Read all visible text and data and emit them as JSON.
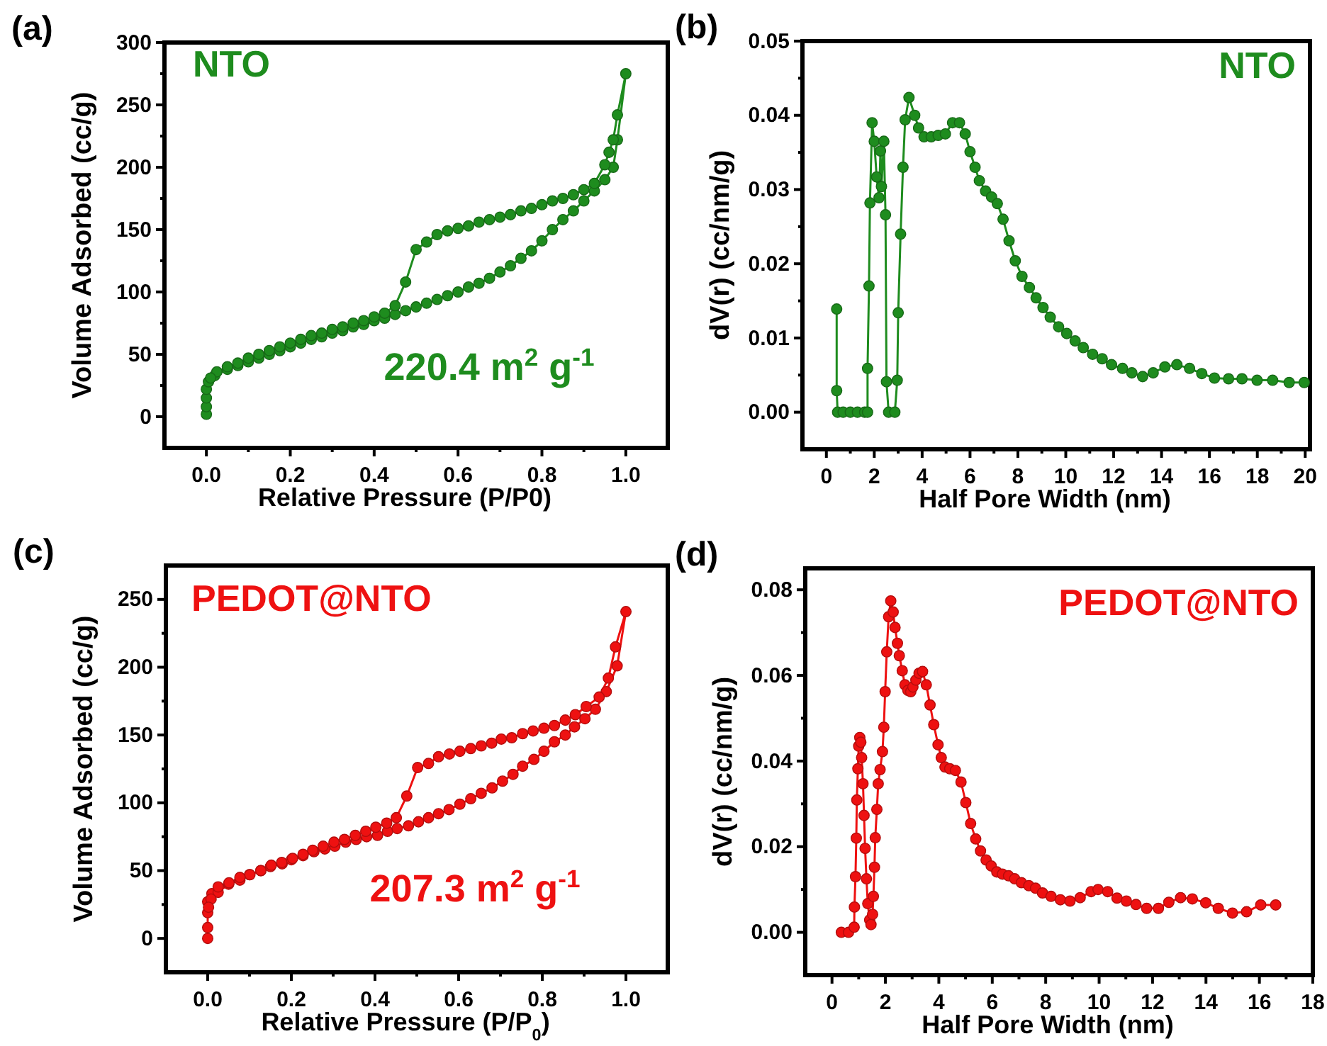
{
  "chart_data": [
    {
      "type": "line",
      "xlabel": "Relative Pressure (P/P0)",
      "ylabel": "Volume Adsorbed (cc/g)",
      "annotations": [
        "(a)",
        "NTO",
        "220.4 m$^{2}$ g$^{-1}$"
      ],
      "marker": "circle",
      "line_style": "solid",
      "xlim": [
        -0.1,
        1.1
      ],
      "ylim": [
        -25,
        300
      ],
      "xticks": [
        {
          "value": 0,
          "label": "0.0"
        },
        {
          "value": 0.1,
          "label": null
        },
        {
          "value": 0.2,
          "label": "0.2"
        },
        {
          "value": 0.3,
          "label": null
        },
        {
          "value": 0.4,
          "label": "0.4"
        },
        {
          "value": 0.5,
          "label": null
        },
        {
          "value": 0.6,
          "label": "0.6"
        },
        {
          "value": 0.7,
          "label": null
        },
        {
          "value": 0.8,
          "label": "0.8"
        },
        {
          "value": 0.9,
          "label": null
        },
        {
          "value": 1,
          "label": "1.0"
        }
      ],
      "yticks": [
        0,
        {
          "value": 25,
          "label": null
        },
        50,
        {
          "value": 75,
          "label": null
        },
        100,
        {
          "value": 125,
          "label": null
        },
        150,
        {
          "value": 175,
          "label": null
        },
        200,
        {
          "value": 225,
          "label": null
        },
        250,
        {
          "value": 275,
          "label": null
        },
        300
      ],
      "series": [
        {
          "color": "#1e8c1e",
          "x": [
            0,
            0,
            0,
            0,
            0.005,
            0.02,
            0.05,
            0.075,
            0.1,
            0.125,
            0.15,
            0.175,
            0.2,
            0.225,
            0.25,
            0.275,
            0.3,
            0.325,
            0.35,
            0.375,
            0.4,
            0.425,
            0.45,
            0.475,
            0.5,
            0.525,
            0.55,
            0.575,
            0.6,
            0.625,
            0.65,
            0.675,
            0.7,
            0.725,
            0.75,
            0.775,
            0.8,
            0.825,
            0.85,
            0.875,
            0.9,
            0.925,
            0.95,
            0.97,
            0.98,
            1.0,
            0.98,
            0.97,
            0.96,
            0.95,
            0.925,
            0.9,
            0.875,
            0.85,
            0.825,
            0.8,
            0.775,
            0.75,
            0.725,
            0.7,
            0.675,
            0.65,
            0.625,
            0.6,
            0.575,
            0.55,
            0.525,
            0.5,
            0.475,
            0.45,
            0.425,
            0.4,
            0.375,
            0.35,
            0.325,
            0.3,
            0.275,
            0.25,
            0.225,
            0.2,
            0.175,
            0.15,
            0.125,
            0.1,
            0.075,
            0.05,
            0.025,
            0.01
          ],
          "values": [
            2,
            8,
            15,
            22,
            28,
            33,
            38,
            41,
            44,
            47,
            50,
            53,
            56,
            59,
            62,
            64,
            67,
            69,
            72,
            74,
            77,
            79,
            82,
            85,
            88,
            91,
            94,
            97,
            100,
            104,
            107,
            111,
            116,
            121,
            127,
            133,
            141,
            150,
            158,
            165,
            173,
            181,
            190,
            200,
            222,
            275,
            242,
            222,
            212,
            202,
            187,
            182,
            178,
            175,
            173,
            170,
            167,
            165,
            162,
            160,
            158,
            156,
            153,
            151,
            149,
            146,
            140,
            134,
            108,
            89,
            83,
            80,
            77,
            75,
            72,
            70,
            67,
            65,
            62,
            59,
            56,
            53,
            50,
            47,
            43,
            40,
            36,
            31
          ]
        }
      ]
    },
    {
      "type": "line",
      "xlabel": "Half Pore Width (nm)",
      "ylabel": "dV(r) (cc/nm/g)",
      "annotations": [
        "(b)",
        "NTO"
      ],
      "marker": "circle",
      "line_style": "solid",
      "xlim": [
        -1,
        20.2
      ],
      "ylim": [
        -0.005,
        0.05
      ],
      "xticks": [
        0,
        {
          "value": 1,
          "label": null
        },
        2,
        {
          "value": 3,
          "label": null
        },
        4,
        {
          "value": 5,
          "label": null
        },
        6,
        {
          "value": 7,
          "label": null
        },
        8,
        {
          "value": 9,
          "label": null
        },
        10,
        {
          "value": 11,
          "label": null
        },
        12,
        {
          "value": 13,
          "label": null
        },
        14,
        {
          "value": 15,
          "label": null
        },
        16,
        {
          "value": 17,
          "label": null
        },
        18,
        {
          "value": 19,
          "label": null
        },
        20
      ],
      "yticks": [
        {
          "value": 0,
          "label": "0.00"
        },
        {
          "value": 0.005,
          "label": null
        },
        {
          "value": 0.01,
          "label": "0.01"
        },
        {
          "value": 0.015,
          "label": null
        },
        {
          "value": 0.02,
          "label": "0.02"
        },
        {
          "value": 0.025,
          "label": null
        },
        {
          "value": 0.03,
          "label": "0.03"
        },
        {
          "value": 0.035,
          "label": null
        },
        {
          "value": 0.04,
          "label": "0.04"
        },
        {
          "value": 0.045,
          "label": null
        },
        {
          "value": 0.05,
          "label": "0.05"
        }
      ],
      "series": [
        {
          "color": "#1e8c1e",
          "x": [
            0.43,
            0.43,
            0.47,
            0.7,
            1.0,
            1.3,
            1.6,
            1.72,
            1.72,
            1.78,
            1.82,
            1.91,
            2.0,
            2.1,
            2.2,
            2.26,
            2.3,
            2.4,
            2.47,
            2.51,
            2.6,
            2.86,
            2.96,
            3.0,
            3.1,
            3.2,
            3.29,
            3.45,
            3.69,
            3.85,
            4.08,
            4.38,
            4.67,
            4.97,
            5.27,
            5.56,
            5.8,
            6.0,
            6.21,
            6.39,
            6.65,
            6.9,
            7.14,
            7.38,
            7.63,
            7.89,
            8.17,
            8.48,
            8.76,
            9.05,
            9.35,
            9.7,
            10.04,
            10.39,
            10.73,
            11.12,
            11.52,
            11.91,
            12.37,
            12.76,
            13.21,
            13.65,
            14.14,
            14.64,
            15.17,
            15.68,
            16.21,
            16.8,
            17.36,
            17.99,
            18.64,
            19.33,
            19.96
          ],
          "values": [
            0.0139,
            0.0029,
            0,
            0,
            0,
            0,
            0,
            0,
            0.0059,
            0.017,
            0.0282,
            0.039,
            0.0365,
            0.0317,
            0.0289,
            0.0352,
            0.0304,
            0.0365,
            0.0266,
            0.0041,
            0,
            0,
            0.0043,
            0.0134,
            0.024,
            0.033,
            0.0394,
            0.0424,
            0.04,
            0.0383,
            0.0371,
            0.0371,
            0.0373,
            0.0375,
            0.039,
            0.039,
            0.0375,
            0.0351,
            0.033,
            0.0312,
            0.0298,
            0.029,
            0.0281,
            0.026,
            0.0231,
            0.0204,
            0.0183,
            0.0168,
            0.0154,
            0.0141,
            0.0128,
            0.0115,
            0.0106,
            0.0096,
            0.0087,
            0.0078,
            0.0072,
            0.0064,
            0.0059,
            0.0053,
            0.0048,
            0.0053,
            0.0061,
            0.0064,
            0.0059,
            0.0052,
            0.0046,
            0.0045,
            0.0045,
            0.0043,
            0.0043,
            0.004,
            0.004
          ]
        }
      ]
    },
    {
      "type": "line",
      "xlabel": "Relative Pressure (P/P$_{0}$)",
      "ylabel": "Volume Adsorbed (cc/g)",
      "annotations": [
        "(c)",
        "PEDOT@NTO",
        "207.3 m$^{2}$ g$^{-1}$"
      ],
      "marker": "circle",
      "line_style": "solid",
      "xlim": [
        -0.1,
        1.1
      ],
      "ylim": [
        -25,
        275
      ],
      "xticks": [
        {
          "value": 0,
          "label": "0.0"
        },
        {
          "value": 0.1,
          "label": null
        },
        {
          "value": 0.2,
          "label": "0.2"
        },
        {
          "value": 0.3,
          "label": null
        },
        {
          "value": 0.4,
          "label": "0.4"
        },
        {
          "value": 0.5,
          "label": null
        },
        {
          "value": 0.6,
          "label": "0.6"
        },
        {
          "value": 0.7,
          "label": null
        },
        {
          "value": 0.8,
          "label": "0.8"
        },
        {
          "value": 0.9,
          "label": null
        },
        {
          "value": 1,
          "label": "1.0"
        }
      ],
      "yticks": [
        0,
        {
          "value": 25,
          "label": null
        },
        50,
        {
          "value": 75,
          "label": null
        },
        100,
        {
          "value": 125,
          "label": null
        },
        150,
        {
          "value": 175,
          "label": null
        },
        200,
        {
          "value": 225,
          "label": null
        },
        250
      ],
      "series": [
        {
          "color": "#ee1111",
          "x": [
            0,
            0,
            0,
            0,
            0.01,
            0.025,
            0.05,
            0.077,
            0.1,
            0.127,
            0.15,
            0.178,
            0.2,
            0.228,
            0.254,
            0.28,
            0.304,
            0.33,
            0.355,
            0.38,
            0.406,
            0.43,
            0.453,
            0.48,
            0.504,
            0.528,
            0.552,
            0.577,
            0.603,
            0.629,
            0.654,
            0.68,
            0.705,
            0.73,
            0.753,
            0.78,
            0.804,
            0.829,
            0.855,
            0.877,
            0.902,
            0.927,
            0.953,
            0.979,
            1.0,
            0.975,
            0.958,
            0.936,
            0.905,
            0.879,
            0.855,
            0.829,
            0.804,
            0.778,
            0.753,
            0.727,
            0.702,
            0.679,
            0.654,
            0.629,
            0.603,
            0.578,
            0.552,
            0.528,
            0.502,
            0.476,
            0.451,
            0.428,
            0.402,
            0.378,
            0.353,
            0.327,
            0.302,
            0.276,
            0.251,
            0.228,
            0.203,
            0.177,
            0.152,
            0.127,
            0.101,
            0.077,
            0.051,
            0.025,
            0.008,
            0.002
          ],
          "values": [
            0,
            8,
            19,
            27,
            33,
            34,
            40,
            43,
            47,
            50,
            53,
            55,
            58,
            61,
            64,
            66,
            68,
            71,
            73,
            75,
            76,
            79,
            81,
            83,
            86,
            89,
            92,
            95,
            99,
            103,
            107,
            111,
            116,
            121,
            127,
            132,
            138,
            145,
            150,
            156,
            162,
            169,
            182,
            201,
            241,
            215,
            192,
            178,
            171,
            165,
            161,
            157,
            155,
            153,
            151,
            148,
            147,
            144,
            142,
            140,
            138,
            136,
            134,
            129,
            126,
            105,
            89,
            85,
            82,
            79,
            76,
            73,
            71,
            68,
            65,
            62,
            59,
            56,
            54,
            50,
            47,
            45,
            41,
            38,
            29,
            23
          ]
        }
      ]
    },
    {
      "type": "line",
      "xlabel": "Half Pore Width (nm)",
      "ylabel": "dV(r) (cc/nm/g)",
      "annotations": [
        "(d)",
        "PEDOT@NTO"
      ],
      "marker": "circle",
      "line_style": "solid",
      "xlim": [
        -1,
        18
      ],
      "ylim": [
        -0.01,
        0.085
      ],
      "xticks": [
        0,
        {
          "value": 1,
          "label": null
        },
        2,
        {
          "value": 3,
          "label": null
        },
        4,
        {
          "value": 5,
          "label": null
        },
        6,
        {
          "value": 7,
          "label": null
        },
        8,
        {
          "value": 9,
          "label": null
        },
        10,
        {
          "value": 11,
          "label": null
        },
        12,
        {
          "value": 13,
          "label": null
        },
        14,
        {
          "value": 15,
          "label": null
        },
        16,
        {
          "value": 17,
          "label": null
        },
        18
      ],
      "yticks": [
        {
          "value": 0,
          "label": "0.00"
        },
        {
          "value": 0.01,
          "label": null
        },
        {
          "value": 0.02,
          "label": "0.02"
        },
        {
          "value": 0.03,
          "label": null
        },
        {
          "value": 0.04,
          "label": "0.04"
        },
        {
          "value": 0.05,
          "label": null
        },
        {
          "value": 0.06,
          "label": "0.06"
        },
        {
          "value": 0.07,
          "label": null
        },
        {
          "value": 0.08,
          "label": "0.08"
        }
      ],
      "series": [
        {
          "color": "#ee1111",
          "x": [
            0.35,
            0.62,
            0.83,
            0.84,
            0.88,
            0.91,
            0.93,
            0.97,
            1.0,
            1.04,
            1.08,
            1.11,
            1.16,
            1.2,
            1.24,
            1.29,
            1.34,
            1.41,
            1.46,
            1.52,
            1.55,
            1.59,
            1.62,
            1.68,
            1.73,
            1.8,
            1.89,
            1.94,
            1.99,
            2.05,
            2.12,
            2.2,
            2.29,
            2.36,
            2.45,
            2.52,
            2.63,
            2.73,
            2.84,
            2.95,
            3.03,
            3.14,
            3.26,
            3.39,
            3.53,
            3.67,
            3.81,
            3.97,
            4.09,
            4.23,
            4.41,
            4.62,
            4.83,
            5.01,
            5.19,
            5.38,
            5.56,
            5.77,
            5.96,
            6.17,
            6.38,
            6.61,
            6.84,
            7.09,
            7.37,
            7.62,
            7.88,
            8.2,
            8.55,
            8.91,
            9.29,
            9.7,
            9.96,
            10.32,
            10.67,
            11.02,
            11.38,
            11.78,
            12.22,
            12.61,
            13.05,
            13.49,
            13.99,
            14.46,
            14.99,
            15.52,
            16.05,
            16.61
          ],
          "values": [
            0,
            0,
            0.0012,
            0.0059,
            0.013,
            0.022,
            0.0309,
            0.0382,
            0.0435,
            0.0455,
            0.0444,
            0.0408,
            0.0347,
            0.0273,
            0.0196,
            0.0125,
            0.0067,
            0.0029,
            0.0018,
            0.0042,
            0.0084,
            0.0152,
            0.0221,
            0.0287,
            0.0347,
            0.038,
            0.0422,
            0.0479,
            0.0562,
            0.0655,
            0.0737,
            0.0774,
            0.0748,
            0.0712,
            0.0675,
            0.0646,
            0.0611,
            0.0578,
            0.0565,
            0.0562,
            0.0573,
            0.0589,
            0.0605,
            0.0609,
            0.0578,
            0.0531,
            0.0485,
            0.0438,
            0.0408,
            0.0386,
            0.0382,
            0.0378,
            0.0351,
            0.0303,
            0.0254,
            0.0218,
            0.019,
            0.0169,
            0.0155,
            0.0141,
            0.0136,
            0.0132,
            0.0125,
            0.0116,
            0.0109,
            0.0103,
            0.0092,
            0.0084,
            0.0076,
            0.0073,
            0.0081,
            0.0095,
            0.01,
            0.0095,
            0.008,
            0.0073,
            0.0065,
            0.0056,
            0.0056,
            0.007,
            0.0081,
            0.0078,
            0.0069,
            0.0056,
            0.0045,
            0.0048,
            0.0064,
            0.0064
          ]
        }
      ]
    }
  ]
}
